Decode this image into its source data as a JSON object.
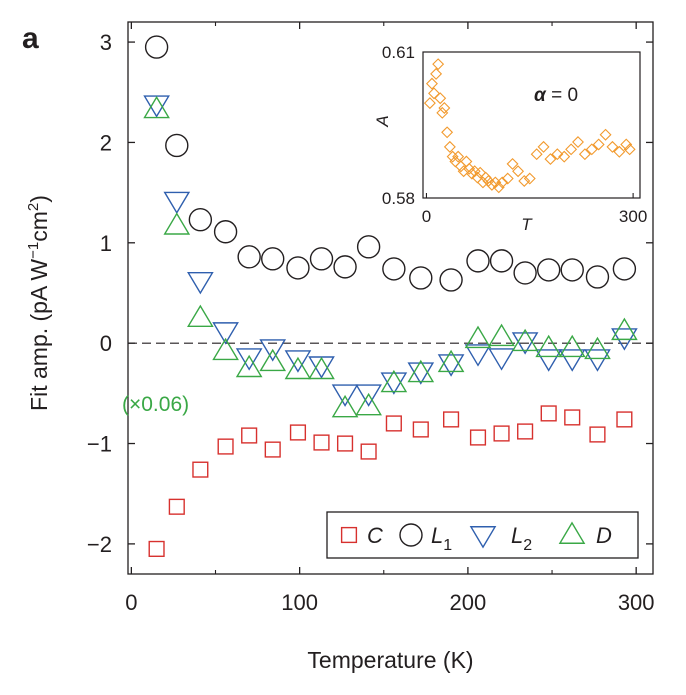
{
  "panel_label": "a",
  "colors": {
    "axis": "#231f20",
    "C": "#d7312e",
    "L1": "#231f20",
    "L2": "#2f5fae",
    "D": "#3aa846",
    "inset": "#f29a2e",
    "scale_note": "#3aa846"
  },
  "chart_data": [
    {
      "id": "main",
      "type": "scatter",
      "title": "",
      "xlabel": "Temperature (K)",
      "ylabel": "Fit amp. (pA W",
      "ylabel_sup1": "−1",
      "ylabel_mid": "cm",
      "ylabel_sup2": "2",
      "ylabel_end": ")",
      "xlim": [
        -2,
        310
      ],
      "ylim": [
        -2.3,
        3.2
      ],
      "xticks": [
        0,
        100,
        200,
        300
      ],
      "xtick_labels": [
        "0",
        "100",
        "200",
        "300"
      ],
      "yticks": [
        -2,
        -1,
        0,
        1,
        2,
        3
      ],
      "ytick_labels": [
        "−2",
        "−1",
        "0",
        "1",
        "2",
        "3"
      ],
      "zero_line": "dashed",
      "grid": false,
      "legend_position": "bottom-right",
      "annotation": "(×0.06)",
      "series": [
        {
          "name": "C",
          "marker": "square",
          "color": "#d7312e",
          "x": [
            15,
            27,
            41,
            56,
            70,
            84,
            99,
            113,
            127,
            141,
            156,
            172,
            190,
            206,
            220,
            234,
            248,
            262,
            277,
            293
          ],
          "y": [
            -2.05,
            -1.63,
            -1.26,
            -1.03,
            -0.92,
            -1.06,
            -0.89,
            -0.99,
            -1.0,
            -1.08,
            -0.8,
            -0.86,
            -0.76,
            -0.94,
            -0.9,
            -0.88,
            -0.7,
            -0.74,
            -0.91,
            -0.76
          ]
        },
        {
          "name": "L",
          "name_sub": "1",
          "marker": "circle",
          "color": "#231f20",
          "x": [
            15,
            27,
            41,
            56,
            70,
            84,
            99,
            113,
            127,
            141,
            156,
            172,
            190,
            206,
            220,
            234,
            248,
            262,
            277,
            293
          ],
          "y": [
            2.95,
            1.97,
            1.23,
            1.11,
            0.86,
            0.84,
            0.75,
            0.84,
            0.76,
            0.96,
            0.74,
            0.65,
            0.63,
            0.82,
            0.82,
            0.7,
            0.73,
            0.73,
            0.66,
            0.74
          ]
        },
        {
          "name": "L",
          "name_sub": "2",
          "marker": "triangle-down",
          "color": "#2f5fae",
          "x": [
            15,
            27,
            41,
            56,
            70,
            84,
            99,
            113,
            127,
            141,
            156,
            172,
            190,
            206,
            220,
            234,
            248,
            262,
            277,
            293
          ],
          "y": [
            2.38,
            1.42,
            0.62,
            0.12,
            -0.14,
            -0.05,
            -0.16,
            -0.22,
            -0.5,
            -0.5,
            -0.38,
            -0.28,
            -0.2,
            -0.1,
            -0.14,
            0.02,
            -0.15,
            -0.15,
            -0.15,
            0.06
          ]
        },
        {
          "name": "D",
          "marker": "triangle-up",
          "color": "#3aa846",
          "x": [
            15,
            27,
            41,
            56,
            70,
            84,
            99,
            113,
            127,
            141,
            156,
            172,
            190,
            206,
            220,
            234,
            248,
            262,
            277,
            293
          ],
          "y": [
            2.33,
            1.17,
            0.25,
            -0.08,
            -0.25,
            -0.19,
            -0.27,
            -0.27,
            -0.65,
            -0.63,
            -0.4,
            -0.3,
            -0.2,
            0.04,
            0.06,
            0.01,
            -0.05,
            -0.05,
            -0.07,
            0.12
          ]
        }
      ]
    },
    {
      "id": "inset",
      "type": "scatter",
      "xlabel": "T",
      "ylabel": "A",
      "annotation_symbol": "α",
      "annotation_value": " = 0",
      "xlim": [
        -5,
        310
      ],
      "ylim": [
        0.58,
        0.61
      ],
      "xticks": [
        0,
        300
      ],
      "xtick_labels": [
        "0",
        "300"
      ],
      "yticks": [
        0.58,
        0.61
      ],
      "ytick_labels": [
        "0.58",
        "0.61"
      ],
      "series": [
        {
          "marker": "diamond",
          "color": "#f29a2e",
          "x": [
            5,
            8,
            11,
            14,
            17,
            20,
            23,
            26,
            30,
            34,
            38,
            42,
            46,
            50,
            54,
            58,
            62,
            66,
            70,
            74,
            78,
            82,
            86,
            90,
            95,
            100,
            105,
            110,
            118,
            125,
            133,
            142,
            150,
            160,
            170,
            180,
            190,
            200,
            210,
            220,
            230,
            240,
            250,
            260,
            270,
            280,
            290,
            295
          ],
          "y": [
            0.5995,
            0.6035,
            0.6015,
            0.6055,
            0.6075,
            0.6005,
            0.5975,
            0.5985,
            0.5935,
            0.5905,
            0.5885,
            0.5875,
            0.5885,
            0.5865,
            0.5855,
            0.5875,
            0.586,
            0.585,
            0.5855,
            0.5842,
            0.5852,
            0.5832,
            0.5842,
            0.5835,
            0.5827,
            0.5832,
            0.5822,
            0.5832,
            0.584,
            0.587,
            0.5855,
            0.5835,
            0.584,
            0.589,
            0.5905,
            0.588,
            0.589,
            0.5885,
            0.59,
            0.5915,
            0.589,
            0.59,
            0.591,
            0.593,
            0.5905,
            0.5895,
            0.591,
            0.59
          ]
        }
      ]
    }
  ]
}
